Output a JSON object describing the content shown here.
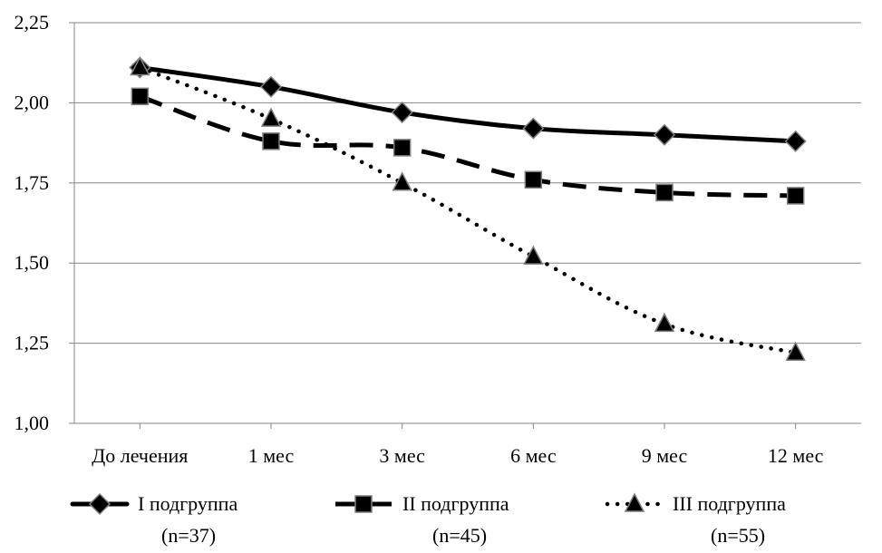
{
  "chart_data": {
    "type": "line",
    "categories": [
      "До лечения",
      "1 мес",
      "3 мес",
      "6 мес",
      "9 мес",
      "12 мес"
    ],
    "series": [
      {
        "name": "I подгруппа",
        "n_label": "(n=37)",
        "values": [
          2.11,
          2.05,
          1.97,
          1.92,
          1.9,
          1.88
        ],
        "line": "solid",
        "marker": "diamond"
      },
      {
        "name": "II подгруппа",
        "n_label": "(n=45)",
        "values": [
          2.02,
          1.88,
          1.86,
          1.76,
          1.72,
          1.71
        ],
        "line": "dashed",
        "marker": "square"
      },
      {
        "name": "III подгруппа",
        "n_label": "(n=55)",
        "values": [
          2.11,
          1.95,
          1.75,
          1.52,
          1.31,
          1.22
        ],
        "line": "dotted",
        "marker": "triangle"
      }
    ],
    "ylim": [
      1.0,
      2.25
    ],
    "yticks": [
      {
        "value": 1.0,
        "label": "1,00"
      },
      {
        "value": 1.25,
        "label": "1,25"
      },
      {
        "value": 1.5,
        "label": "1,50"
      },
      {
        "value": 1.75,
        "label": "1,75"
      },
      {
        "value": 2.0,
        "label": "2,00"
      },
      {
        "value": 2.25,
        "label": "2,25"
      }
    ],
    "grid": true,
    "legend_position": "bottom",
    "colors": {
      "line": "#000000",
      "grid": "#868686",
      "marker_stroke": "#7f7f7f"
    }
  }
}
